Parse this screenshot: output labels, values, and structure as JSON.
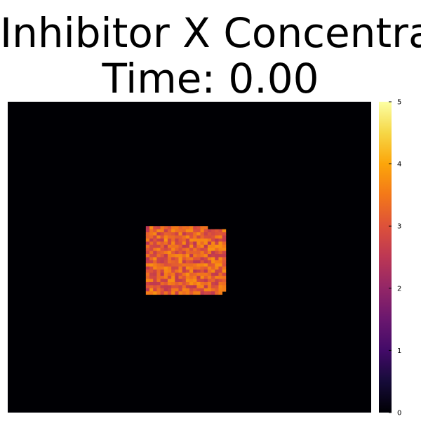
{
  "chart_data": {
    "type": "heatmap",
    "title": "Inhibitor X Concentration",
    "subtitle": "Time: 0.00",
    "grid": false,
    "legend": "colorbar-right",
    "colormap": "inferno",
    "grid_size": [
      100,
      100
    ],
    "background_value": 0,
    "filled_region": {
      "value_range": [
        2.5,
        3.8
      ],
      "mean_value": 3.1,
      "row_range": [
        40,
        62
      ],
      "col_range": [
        38,
        60
      ]
    },
    "colorbar": {
      "min": 0,
      "max": 5,
      "ticks": [
        "0",
        "1",
        "2",
        "3",
        "4",
        "5"
      ]
    }
  }
}
